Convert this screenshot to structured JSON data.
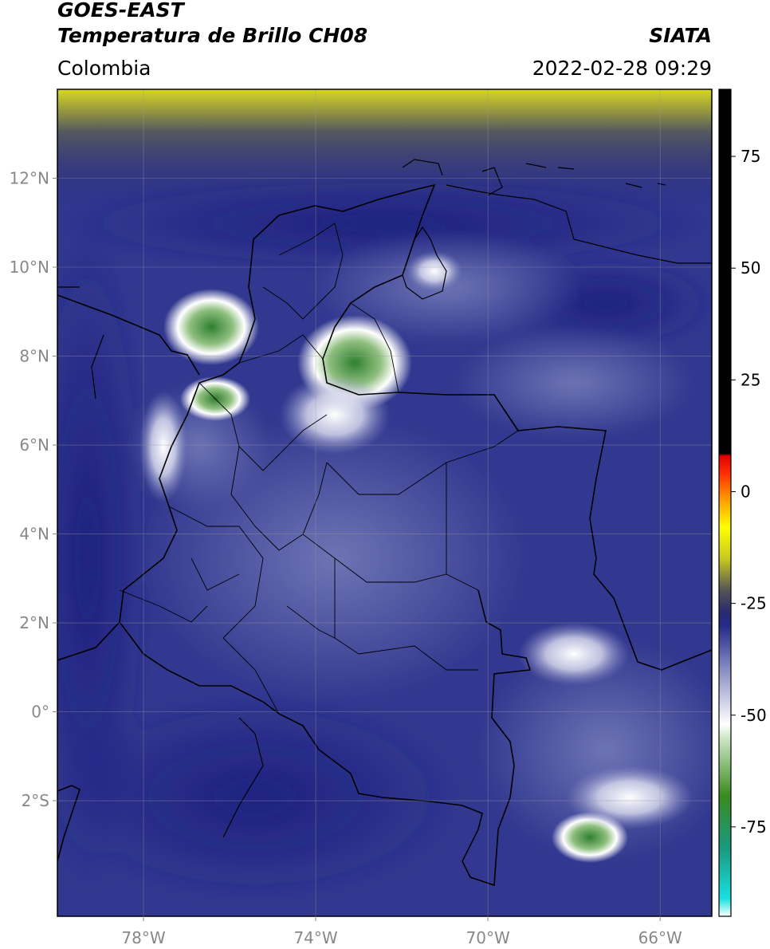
{
  "header": {
    "satellite": "GOES-EAST",
    "product": "Temperatura de Brillo CH08",
    "brand": "SIATA",
    "region": "Colombia",
    "datetime": "2022-02-28 09:29"
  },
  "map": {
    "lon_range": [
      -80.0,
      -64.8
    ],
    "lat_range": [
      -4.6,
      14.0
    ],
    "lat_ticks": [
      {
        "value": 12,
        "label": "12°N"
      },
      {
        "value": 10,
        "label": "10°N"
      },
      {
        "value": 8,
        "label": "8°N"
      },
      {
        "value": 6,
        "label": "6°N"
      },
      {
        "value": 4,
        "label": "4°N"
      },
      {
        "value": 2,
        "label": "2°N"
      },
      {
        "value": 0,
        "label": "0°"
      },
      {
        "value": -2,
        "label": "2°S"
      }
    ],
    "lon_ticks": [
      {
        "value": -78,
        "label": "78°W"
      },
      {
        "value": -74,
        "label": "74°W"
      },
      {
        "value": -70,
        "label": "70°W"
      },
      {
        "value": -66,
        "label": "66°W"
      }
    ],
    "grid": true,
    "field_colors": {
      "background": "#32388f",
      "deep": "#1c1f7e",
      "mid": "#4a53a3",
      "light": "#7d84bd",
      "pale": "#c9cce4",
      "cold_white": "#ffffff",
      "cold_green": "#3a8f3a",
      "north_gray": "#565a5e",
      "north_yellow": "#d8d820"
    }
  },
  "colorbar": {
    "range": [
      -95,
      90
    ],
    "ticks": [
      {
        "value": 75,
        "label": "75"
      },
      {
        "value": 50,
        "label": "50"
      },
      {
        "value": 25,
        "label": "25"
      },
      {
        "value": 0,
        "label": "0"
      },
      {
        "value": -25,
        "label": "-25"
      },
      {
        "value": -50,
        "label": "-50"
      },
      {
        "value": -75,
        "label": "-75"
      }
    ],
    "stops": [
      {
        "value": -95,
        "color": "#ffffff"
      },
      {
        "value": -91,
        "color": "#18e0e0"
      },
      {
        "value": -80,
        "color": "#1a9a80"
      },
      {
        "value": -68,
        "color": "#3a8a20"
      },
      {
        "value": -55,
        "color": "#cfe8c8"
      },
      {
        "value": -52,
        "color": "#ffffff"
      },
      {
        "value": -40,
        "color": "#8a8fc4"
      },
      {
        "value": -30,
        "color": "#252a88"
      },
      {
        "value": -27,
        "color": "#2a2a70"
      },
      {
        "value": -22,
        "color": "#555555"
      },
      {
        "value": -15,
        "color": "#c8c820"
      },
      {
        "value": -8,
        "color": "#ffff00"
      },
      {
        "value": -2,
        "color": "#ffa000"
      },
      {
        "value": 4,
        "color": "#ff3000"
      },
      {
        "value": 8,
        "color": "#e00000"
      },
      {
        "value": 8.5,
        "color": "#000000"
      },
      {
        "value": 90,
        "color": "#000000"
      }
    ]
  }
}
